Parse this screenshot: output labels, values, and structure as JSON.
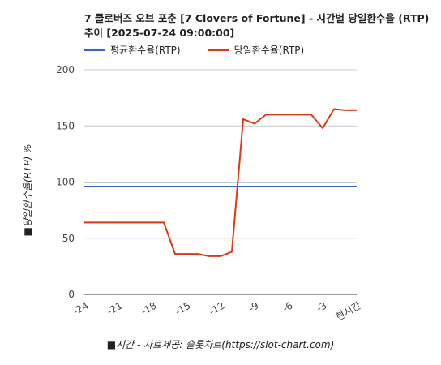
{
  "chart_data": {
    "type": "line",
    "title": "7 클로버즈 오브 포춘 [7 Clovers of Fortune] - 시간별 당일환수율 (RTP) 추이 [2025-07-24 09:00:00]",
    "ylabel": "■당일환수율(RTP) %",
    "xlabel": "■시간 - 자료제공: 슬롯차트(https://slot-chart.com)",
    "ylim": [
      0,
      200
    ],
    "yticks": [
      "0",
      "50",
      "100",
      "150",
      "200"
    ],
    "xlim": [
      -24,
      0
    ],
    "xticks": [
      {
        "value": -24,
        "label": "-24"
      },
      {
        "value": -21,
        "label": "-21"
      },
      {
        "value": -18,
        "label": "-18"
      },
      {
        "value": -15,
        "label": "-15"
      },
      {
        "value": -12,
        "label": "-12"
      },
      {
        "value": -9,
        "label": "-9"
      },
      {
        "value": -6,
        "label": "-6"
      },
      {
        "value": -3,
        "label": "-3"
      },
      {
        "value": 0,
        "label": "현시간"
      }
    ],
    "grid": true,
    "legend_position": "top-left",
    "series": [
      {
        "name": "평균환수율(RTP)",
        "color": "#3366cc",
        "points": [
          [
            -24,
            96
          ],
          [
            0,
            96
          ]
        ]
      },
      {
        "name": "당일환수율(RTP)",
        "color": "#dc3912",
        "points": [
          [
            -24,
            64
          ],
          [
            -23,
            64
          ],
          [
            -22,
            64
          ],
          [
            -21,
            64
          ],
          [
            -20,
            64
          ],
          [
            -19,
            64
          ],
          [
            -18,
            64
          ],
          [
            -17,
            64
          ],
          [
            -16,
            36
          ],
          [
            -15,
            36
          ],
          [
            -14,
            36
          ],
          [
            -13,
            34
          ],
          [
            -12,
            34
          ],
          [
            -11,
            38
          ],
          [
            -10,
            156
          ],
          [
            -9,
            152
          ],
          [
            -8,
            160
          ],
          [
            -7,
            160
          ],
          [
            -6,
            160
          ],
          [
            -5,
            160
          ],
          [
            -4,
            160
          ],
          [
            -3,
            148
          ],
          [
            -2,
            165
          ],
          [
            -1,
            164
          ],
          [
            0,
            164
          ]
        ]
      }
    ]
  }
}
